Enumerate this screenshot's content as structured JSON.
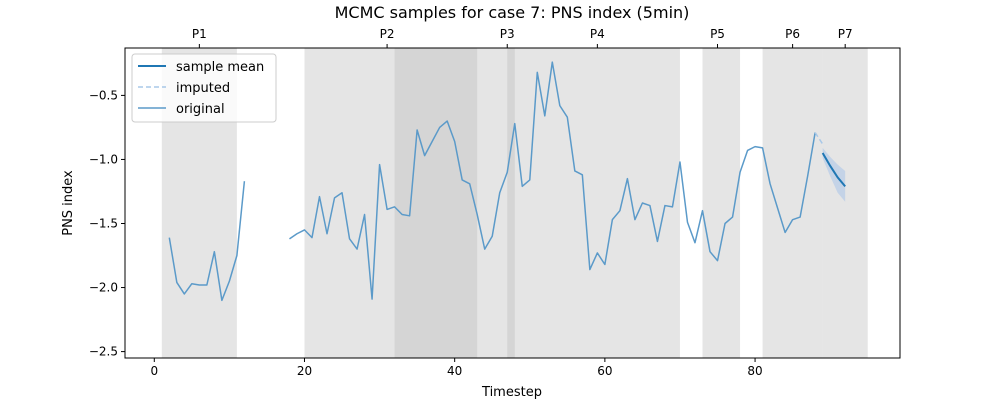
{
  "chart_data": {
    "type": "line",
    "title": "MCMC samples for case 7: PNS index (5min)",
    "xlabel": "Timestep",
    "ylabel": "PNS index",
    "xlim": [
      -3.9,
      99.3
    ],
    "ylim": [
      -2.55,
      -0.13
    ],
    "xticks": [
      0,
      20,
      40,
      60,
      80
    ],
    "yticks": [
      -2.5,
      -2.0,
      -1.5,
      -1.0,
      -0.5
    ],
    "grid": false,
    "legend_position": "top-left",
    "colors": {
      "sample_mean": "#1f77b4",
      "imputed": "#a8c8e8",
      "original": "#5b9ac9",
      "band": "#aec7e8",
      "period_shade": "#bdbdbd",
      "overlap_shade": "#8c8c8c"
    },
    "periods": [
      {
        "label": "P1",
        "start": 1,
        "end": 11,
        "label_x": 6
      },
      {
        "label": "P2",
        "start": 20,
        "end": 43,
        "label_x": 31
      },
      {
        "label": "P3",
        "start": 32,
        "end": 48,
        "label_x": 47
      },
      {
        "label": "P4",
        "start": 47,
        "end": 70,
        "label_x": 59
      },
      {
        "label": "P5",
        "start": 73,
        "end": 78,
        "label_x": 75
      },
      {
        "label": "P6",
        "start": 81,
        "end": 89,
        "label_x": 85
      },
      {
        "label": "P7",
        "start": 89,
        "end": 95,
        "label_x": 92
      }
    ],
    "legend": [
      {
        "key": "sample_mean",
        "label": "sample mean",
        "style": "solid"
      },
      {
        "key": "imputed",
        "label": "imputed",
        "style": "dashed"
      },
      {
        "key": "original",
        "label": "original",
        "style": "solid"
      }
    ],
    "original_segments": [
      [
        [
          2,
          -1.61
        ],
        [
          3,
          -1.96
        ],
        [
          4,
          -2.05
        ],
        [
          5,
          -1.97
        ],
        [
          6,
          -1.98
        ],
        [
          7,
          -1.98
        ],
        [
          8,
          -1.72
        ],
        [
          9,
          -2.1
        ],
        [
          10,
          -1.95
        ],
        [
          11,
          -1.75
        ],
        [
          12,
          -1.17
        ]
      ],
      [
        [
          18,
          -1.62
        ],
        [
          19,
          -1.58
        ],
        [
          20,
          -1.55
        ],
        [
          21,
          -1.61
        ],
        [
          22,
          -1.29
        ],
        [
          23,
          -1.58
        ],
        [
          24,
          -1.3
        ],
        [
          25,
          -1.26
        ],
        [
          26,
          -1.62
        ],
        [
          27,
          -1.7
        ],
        [
          28,
          -1.43
        ],
        [
          29,
          -2.09
        ],
        [
          30,
          -1.04
        ],
        [
          31,
          -1.39
        ],
        [
          32,
          -1.37
        ],
        [
          33,
          -1.43
        ],
        [
          34,
          -1.44
        ],
        [
          35,
          -0.77
        ],
        [
          36,
          -0.97
        ],
        [
          37,
          -0.86
        ],
        [
          38,
          -0.75
        ],
        [
          39,
          -0.7
        ],
        [
          40,
          -0.86
        ],
        [
          41,
          -1.16
        ],
        [
          42,
          -1.19
        ],
        [
          43,
          -1.43
        ],
        [
          44,
          -1.7
        ],
        [
          45,
          -1.6
        ],
        [
          46,
          -1.26
        ],
        [
          47,
          -1.1
        ],
        [
          48,
          -0.72
        ],
        [
          49,
          -1.21
        ],
        [
          50,
          -1.16
        ],
        [
          51,
          -0.32
        ],
        [
          52,
          -0.66
        ],
        [
          53,
          -0.24
        ],
        [
          54,
          -0.58
        ],
        [
          55,
          -0.67
        ],
        [
          56,
          -1.09
        ],
        [
          57,
          -1.12
        ],
        [
          58,
          -1.86
        ],
        [
          59,
          -1.73
        ],
        [
          60,
          -1.82
        ],
        [
          61,
          -1.47
        ],
        [
          62,
          -1.4
        ],
        [
          63,
          -1.15
        ],
        [
          64,
          -1.47
        ],
        [
          65,
          -1.34
        ],
        [
          66,
          -1.36
        ],
        [
          67,
          -1.64
        ],
        [
          68,
          -1.36
        ],
        [
          69,
          -1.37
        ],
        [
          70,
          -1.02
        ],
        [
          71,
          -1.49
        ],
        [
          72,
          -1.65
        ],
        [
          73,
          -1.4
        ],
        [
          74,
          -1.72
        ],
        [
          75,
          -1.79
        ],
        [
          76,
          -1.5
        ],
        [
          77,
          -1.45
        ],
        [
          78,
          -1.1
        ],
        [
          79,
          -0.93
        ],
        [
          80,
          -0.9
        ],
        [
          81,
          -0.91
        ],
        [
          82,
          -1.19
        ],
        [
          83,
          -1.38
        ],
        [
          84,
          -1.57
        ],
        [
          85,
          -1.47
        ],
        [
          86,
          -1.45
        ],
        [
          87,
          -1.13
        ],
        [
          88,
          -0.79
        ]
      ]
    ],
    "imputed": [
      [
        88,
        -0.79
      ],
      [
        89,
        -0.88
      ]
    ],
    "sample_mean": [
      [
        89,
        -0.95
      ],
      [
        90,
        -1.05
      ],
      [
        91,
        -1.14
      ],
      [
        92,
        -1.21
      ]
    ],
    "sample_band": [
      [
        89,
        -0.91,
        -0.99
      ],
      [
        90,
        -0.98,
        -1.13
      ],
      [
        91,
        -1.04,
        -1.26
      ],
      [
        92,
        -1.09,
        -1.33
      ]
    ]
  }
}
